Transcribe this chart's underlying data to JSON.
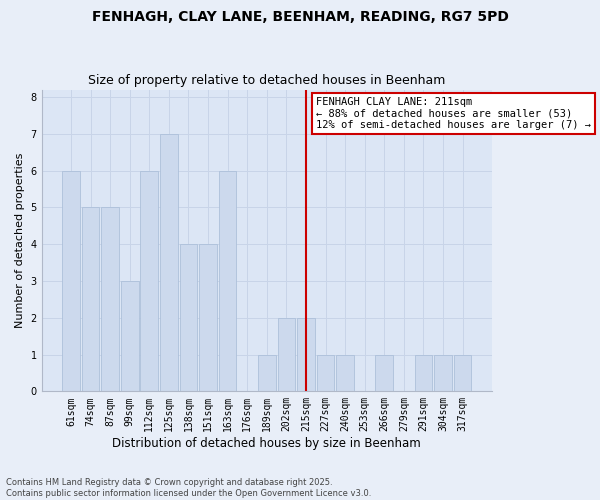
{
  "title_line1": "FENHAGH, CLAY LANE, BEENHAM, READING, RG7 5PD",
  "title_line2": "Size of property relative to detached houses in Beenham",
  "xlabel": "Distribution of detached houses by size in Beenham",
  "ylabel": "Number of detached properties",
  "categories": [
    "61sqm",
    "74sqm",
    "87sqm",
    "99sqm",
    "112sqm",
    "125sqm",
    "138sqm",
    "151sqm",
    "163sqm",
    "176sqm",
    "189sqm",
    "202sqm",
    "215sqm",
    "227sqm",
    "240sqm",
    "253sqm",
    "266sqm",
    "279sqm",
    "291sqm",
    "304sqm",
    "317sqm"
  ],
  "values": [
    6,
    5,
    5,
    3,
    6,
    7,
    4,
    4,
    6,
    0,
    1,
    2,
    2,
    1,
    1,
    0,
    1,
    0,
    1,
    1,
    1
  ],
  "bar_color": "#ccd9ed",
  "bar_edge_color": "#adc0da",
  "vline_x": 12,
  "annotation_text": "FENHAGH CLAY LANE: 211sqm\n← 88% of detached houses are smaller (53)\n12% of semi-detached houses are larger (7) →",
  "annotation_box_color": "#ffffff",
  "annotation_box_edge": "#cc0000",
  "vline_color": "#cc0000",
  "ylim": [
    0,
    8.2
  ],
  "yticks": [
    0,
    1,
    2,
    3,
    4,
    5,
    6,
    7,
    8
  ],
  "grid_color": "#c8d4e8",
  "bg_color": "#dce6f5",
  "fig_bg_color": "#e8eef8",
  "footnote": "Contains HM Land Registry data © Crown copyright and database right 2025.\nContains public sector information licensed under the Open Government Licence v3.0.",
  "title_fontsize": 10,
  "subtitle_fontsize": 9,
  "xlabel_fontsize": 8.5,
  "ylabel_fontsize": 8,
  "tick_fontsize": 7,
  "annot_fontsize": 7.5,
  "footnote_fontsize": 6
}
